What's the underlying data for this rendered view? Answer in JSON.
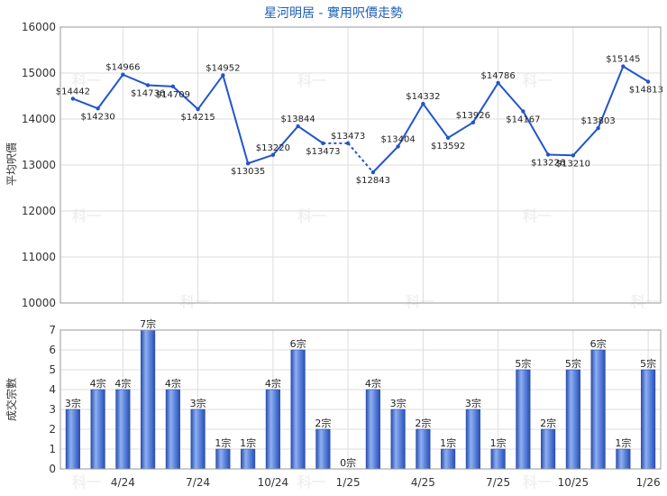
{
  "chart_data": [
    {
      "type": "line",
      "title": "星河明居 - 實用呎價走勢",
      "ylabel": "平均呎價",
      "ylim": [
        10000,
        16000
      ],
      "yticks": [
        10000,
        11000,
        12000,
        13000,
        14000,
        15000,
        16000
      ],
      "series": [
        {
          "values": [
            14442,
            14230,
            14966,
            14736,
            14709,
            14215,
            14952,
            13035,
            13220,
            13844,
            13473,
            13473,
            12843,
            13404,
            14332,
            13592,
            13926,
            14786,
            14167,
            13226,
            13210,
            13803,
            15145,
            14813
          ],
          "labels": [
            "$14442",
            "$14230",
            "$14966",
            "$14736",
            "$14709",
            "$14215",
            "$14952",
            "$13035",
            "$13220",
            "$13844",
            "$13473",
            "$13473",
            "$12843",
            "$13404",
            "$14332",
            "$13592",
            "$13926",
            "$14786",
            "$14167",
            "$13226",
            "$13210",
            "$13803",
            "$15145",
            "$14813"
          ],
          "imputed": [
            false,
            false,
            false,
            false,
            false,
            false,
            false,
            false,
            false,
            false,
            false,
            true,
            false,
            false,
            false,
            false,
            false,
            false,
            false,
            false,
            false,
            false,
            false,
            false
          ]
        }
      ],
      "color": "#2255cc"
    },
    {
      "type": "bar",
      "ylabel": "成交宗數",
      "ylim": [
        0,
        7
      ],
      "yticks": [
        0,
        1,
        2,
        3,
        4,
        5,
        6,
        7
      ],
      "values": [
        3,
        4,
        4,
        7,
        4,
        3,
        1,
        1,
        4,
        6,
        2,
        0,
        4,
        3,
        2,
        1,
        3,
        1,
        5,
        2,
        5,
        6,
        1,
        5
      ],
      "labels": [
        "3宗",
        "4宗",
        "4宗",
        "7宗",
        "4宗",
        "3宗",
        "1宗",
        "1宗",
        "4宗",
        "6宗",
        "2宗",
        "0宗",
        "4宗",
        "3宗",
        "2宗",
        "1宗",
        "3宗",
        "1宗",
        "5宗",
        "2宗",
        "5宗",
        "6宗",
        "1宗",
        "5宗"
      ],
      "x_tick_labels": [
        "4/24",
        "7/24",
        "10/24",
        "1/25",
        "4/25",
        "7/25",
        "10/25",
        "1/26"
      ],
      "x_tick_positions": [
        2.5,
        5.5,
        8.5,
        11.5,
        14.5,
        17.5,
        20.5,
        23.5
      ],
      "color": "#3a63c6"
    }
  ],
  "watermark": "科一"
}
